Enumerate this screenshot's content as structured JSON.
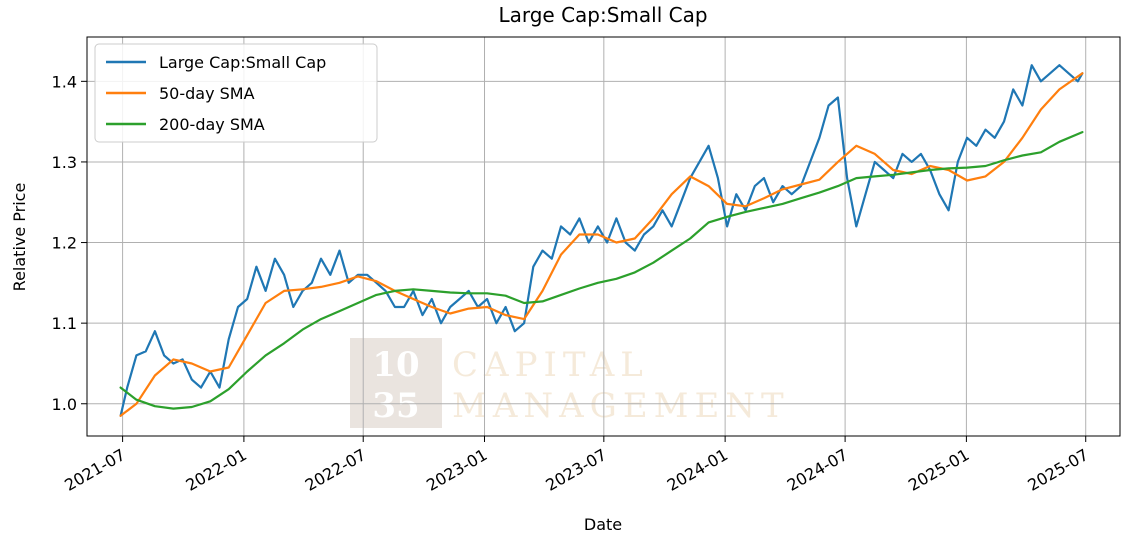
{
  "chart_data": {
    "type": "line",
    "title": "Large Cap:Small Cap",
    "xlabel": "Date",
    "ylabel": "Relative Price",
    "x_ticks": [
      "2021-07",
      "2022-01",
      "2022-07",
      "2023-01",
      "2023-07",
      "2024-01",
      "2024-07",
      "2025-01",
      "2025-07"
    ],
    "y_ticks": [
      "1.0",
      "1.1",
      "1.2",
      "1.3",
      "1.4"
    ],
    "xlim": [
      "2021-05-08",
      "2025-08-22"
    ],
    "ylim": [
      0.96,
      1.455
    ],
    "grid": true,
    "legend_position": "upper left",
    "watermark": {
      "num_top": "10",
      "num_bottom": "35",
      "line1": "CAPITAL",
      "line2": "MANAGEMENT"
    },
    "series": [
      {
        "name": "Large Cap:Small Cap",
        "color": "#1f77b4",
        "x": [
          "2021-06-28",
          "2021-07-08",
          "2021-07-22",
          "2021-08-05",
          "2021-08-19",
          "2021-09-02",
          "2021-09-16",
          "2021-09-30",
          "2021-10-14",
          "2021-10-28",
          "2021-11-11",
          "2021-11-25",
          "2021-12-09",
          "2021-12-23",
          "2022-01-06",
          "2022-01-20",
          "2022-02-03",
          "2022-02-17",
          "2022-03-03",
          "2022-03-17",
          "2022-03-31",
          "2022-04-14",
          "2022-04-28",
          "2022-05-12",
          "2022-05-26",
          "2022-06-09",
          "2022-06-23",
          "2022-07-07",
          "2022-07-21",
          "2022-08-04",
          "2022-08-18",
          "2022-09-01",
          "2022-09-15",
          "2022-09-29",
          "2022-10-13",
          "2022-10-27",
          "2022-11-10",
          "2022-11-24",
          "2022-12-08",
          "2022-12-22",
          "2023-01-05",
          "2023-01-19",
          "2023-02-02",
          "2023-02-16",
          "2023-03-02",
          "2023-03-16",
          "2023-03-30",
          "2023-04-13",
          "2023-04-27",
          "2023-05-11",
          "2023-05-25",
          "2023-06-08",
          "2023-06-22",
          "2023-07-06",
          "2023-07-20",
          "2023-08-03",
          "2023-08-17",
          "2023-08-31",
          "2023-09-14",
          "2023-09-28",
          "2023-10-12",
          "2023-10-26",
          "2023-11-09",
          "2023-11-23",
          "2023-12-07",
          "2023-12-21",
          "2024-01-04",
          "2024-01-18",
          "2024-02-01",
          "2024-02-15",
          "2024-02-29",
          "2024-03-14",
          "2024-03-28",
          "2024-04-11",
          "2024-04-25",
          "2024-05-09",
          "2024-05-23",
          "2024-06-06",
          "2024-06-20",
          "2024-07-04",
          "2024-07-18",
          "2024-08-01",
          "2024-08-15",
          "2024-08-29",
          "2024-09-12",
          "2024-09-26",
          "2024-10-10",
          "2024-10-24",
          "2024-11-07",
          "2024-11-21",
          "2024-12-05",
          "2024-12-19",
          "2025-01-02",
          "2025-01-16",
          "2025-01-30",
          "2025-02-13",
          "2025-02-27",
          "2025-03-13",
          "2025-03-27",
          "2025-04-10",
          "2025-04-24",
          "2025-05-08",
          "2025-05-22",
          "2025-06-05",
          "2025-06-19",
          "2025-06-26"
        ],
        "values": [
          0.985,
          1.02,
          1.06,
          1.065,
          1.09,
          1.06,
          1.05,
          1.055,
          1.03,
          1.02,
          1.04,
          1.02,
          1.08,
          1.12,
          1.13,
          1.17,
          1.14,
          1.18,
          1.16,
          1.12,
          1.14,
          1.15,
          1.18,
          1.16,
          1.19,
          1.15,
          1.16,
          1.16,
          1.15,
          1.14,
          1.12,
          1.12,
          1.14,
          1.11,
          1.13,
          1.1,
          1.12,
          1.13,
          1.14,
          1.12,
          1.13,
          1.1,
          1.12,
          1.09,
          1.1,
          1.17,
          1.19,
          1.18,
          1.22,
          1.21,
          1.23,
          1.2,
          1.22,
          1.2,
          1.23,
          1.2,
          1.19,
          1.21,
          1.22,
          1.24,
          1.22,
          1.25,
          1.28,
          1.3,
          1.32,
          1.28,
          1.22,
          1.26,
          1.24,
          1.27,
          1.28,
          1.25,
          1.27,
          1.26,
          1.27,
          1.3,
          1.33,
          1.37,
          1.38,
          1.28,
          1.22,
          1.26,
          1.3,
          1.29,
          1.28,
          1.31,
          1.3,
          1.31,
          1.29,
          1.26,
          1.24,
          1.3,
          1.33,
          1.32,
          1.34,
          1.33,
          1.35,
          1.39,
          1.37,
          1.42,
          1.4,
          1.41,
          1.42,
          1.41,
          1.4,
          1.41
        ]
      },
      {
        "name": "50-day SMA",
        "color": "#ff7f0e",
        "x": [
          "2021-06-28",
          "2021-07-22",
          "2021-08-19",
          "2021-09-16",
          "2021-10-14",
          "2021-11-11",
          "2021-12-09",
          "2022-01-06",
          "2022-02-03",
          "2022-03-03",
          "2022-03-31",
          "2022-04-28",
          "2022-05-26",
          "2022-06-23",
          "2022-07-21",
          "2022-08-18",
          "2022-09-15",
          "2022-10-13",
          "2022-11-10",
          "2022-12-08",
          "2023-01-05",
          "2023-02-02",
          "2023-03-02",
          "2023-03-30",
          "2023-04-27",
          "2023-05-25",
          "2023-06-22",
          "2023-07-20",
          "2023-08-17",
          "2023-09-14",
          "2023-10-12",
          "2023-11-09",
          "2023-12-07",
          "2024-01-04",
          "2024-02-01",
          "2024-02-29",
          "2024-03-28",
          "2024-04-25",
          "2024-05-23",
          "2024-06-20",
          "2024-07-18",
          "2024-08-15",
          "2024-09-12",
          "2024-10-10",
          "2024-11-07",
          "2024-12-05",
          "2025-01-02",
          "2025-01-30",
          "2025-02-27",
          "2025-03-27",
          "2025-04-24",
          "2025-05-22",
          "2025-06-26"
        ],
        "values": [
          0.985,
          1.0,
          1.035,
          1.055,
          1.05,
          1.04,
          1.045,
          1.085,
          1.125,
          1.14,
          1.142,
          1.145,
          1.15,
          1.158,
          1.152,
          1.14,
          1.13,
          1.12,
          1.112,
          1.118,
          1.12,
          1.11,
          1.105,
          1.14,
          1.185,
          1.21,
          1.21,
          1.2,
          1.205,
          1.23,
          1.26,
          1.282,
          1.27,
          1.248,
          1.245,
          1.255,
          1.266,
          1.272,
          1.278,
          1.3,
          1.32,
          1.31,
          1.29,
          1.285,
          1.295,
          1.29,
          1.277,
          1.282,
          1.3,
          1.33,
          1.365,
          1.39,
          1.41
        ]
      },
      {
        "name": "200-day SMA",
        "color": "#2ca02c",
        "x": [
          "2021-06-28",
          "2021-07-22",
          "2021-08-19",
          "2021-09-16",
          "2021-10-14",
          "2021-11-11",
          "2021-12-09",
          "2022-01-06",
          "2022-02-03",
          "2022-03-03",
          "2022-03-31",
          "2022-04-28",
          "2022-05-26",
          "2022-06-23",
          "2022-07-21",
          "2022-08-18",
          "2022-09-15",
          "2022-10-13",
          "2022-11-10",
          "2022-12-08",
          "2023-01-05",
          "2023-02-02",
          "2023-03-02",
          "2023-03-30",
          "2023-04-27",
          "2023-05-25",
          "2023-06-22",
          "2023-07-20",
          "2023-08-17",
          "2023-09-14",
          "2023-10-12",
          "2023-11-09",
          "2023-12-07",
          "2024-01-04",
          "2024-02-01",
          "2024-02-29",
          "2024-03-28",
          "2024-04-25",
          "2024-05-23",
          "2024-06-20",
          "2024-07-18",
          "2024-08-15",
          "2024-09-12",
          "2024-10-10",
          "2024-11-07",
          "2024-12-05",
          "2025-01-02",
          "2025-01-30",
          "2025-02-27",
          "2025-03-27",
          "2025-04-24",
          "2025-05-22",
          "2025-06-26"
        ],
        "values": [
          1.02,
          1.005,
          0.997,
          0.994,
          0.996,
          1.003,
          1.018,
          1.04,
          1.06,
          1.075,
          1.092,
          1.105,
          1.115,
          1.125,
          1.135,
          1.14,
          1.142,
          1.14,
          1.138,
          1.137,
          1.137,
          1.134,
          1.125,
          1.127,
          1.135,
          1.143,
          1.15,
          1.155,
          1.163,
          1.175,
          1.19,
          1.205,
          1.225,
          1.232,
          1.238,
          1.243,
          1.248,
          1.255,
          1.262,
          1.27,
          1.28,
          1.282,
          1.284,
          1.287,
          1.29,
          1.292,
          1.293,
          1.295,
          1.302,
          1.308,
          1.312,
          1.325,
          1.337
        ]
      }
    ]
  }
}
